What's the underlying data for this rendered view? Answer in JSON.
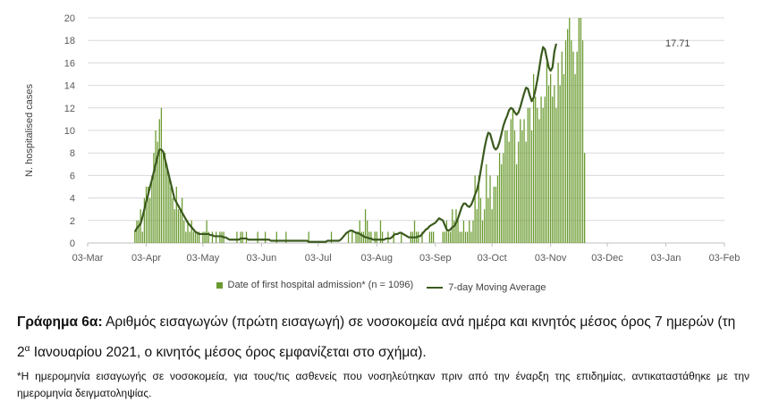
{
  "chart_data": {
    "type": "bar",
    "ylabel": "N. hospitalised cases",
    "ylim": [
      0,
      20
    ],
    "yticks": [
      "0",
      "2",
      "4",
      "6",
      "8",
      "10",
      "12",
      "14",
      "16",
      "18",
      "20"
    ],
    "xticks": [
      "03-Mar",
      "03-Apr",
      "03-May",
      "03-Jun",
      "03-Jul",
      "03-Aug",
      "03-Sep",
      "03-Oct",
      "03-Nov",
      "03-Dec",
      "03-Jan",
      "03-Feb"
    ],
    "xlim": [
      "2020-03-03",
      "2021-02-03"
    ],
    "grid": true,
    "legend_position": "bottom",
    "start_date": "2020-03-03",
    "series": [
      {
        "name": "Date of first hospital admission* (n = 1096)",
        "kind": "bar",
        "color": "#6a9a2f",
        "values": [
          0,
          0,
          0,
          0,
          0,
          0,
          0,
          0,
          0,
          0,
          0,
          0,
          0,
          0,
          0,
          0,
          0,
          0,
          0,
          0,
          0,
          0,
          0,
          0,
          0,
          1,
          2,
          2,
          3,
          1,
          4,
          5,
          5,
          4,
          6,
          8,
          10,
          9,
          11,
          12,
          8,
          8,
          7,
          6,
          5,
          4,
          3,
          5,
          3,
          3,
          4,
          2,
          1,
          2,
          1,
          2,
          1,
          1,
          1,
          1,
          0,
          1,
          1,
          2,
          1,
          0,
          1,
          0,
          1,
          0,
          1,
          1,
          1,
          0,
          0,
          0,
          0,
          0,
          0,
          1,
          0,
          1,
          1,
          0,
          1,
          0,
          0,
          0,
          0,
          0,
          1,
          0,
          0,
          0,
          1,
          0,
          0,
          0,
          0,
          0,
          1,
          0,
          0,
          0,
          0,
          1,
          0,
          0,
          0,
          0,
          0,
          0,
          0,
          0,
          0,
          0,
          0,
          1,
          0,
          0,
          0,
          0,
          0,
          0,
          0,
          0,
          0,
          0,
          0,
          1,
          0,
          0,
          0,
          0,
          0,
          0,
          0,
          0,
          1,
          0,
          1,
          0,
          1,
          1,
          2,
          1,
          1,
          3,
          2,
          1,
          1,
          0,
          1,
          1,
          0,
          2,
          1,
          0,
          0,
          1,
          0,
          0,
          1,
          0,
          0,
          0,
          1,
          0,
          0,
          0,
          0,
          1,
          1,
          2,
          1,
          1,
          0,
          1,
          0,
          0,
          0,
          1,
          1,
          1,
          0,
          0,
          0,
          0,
          1,
          1,
          2,
          1,
          1,
          3,
          2,
          3,
          2,
          1,
          1,
          2,
          1,
          1,
          2,
          1,
          2,
          6,
          3,
          6,
          4,
          2,
          3,
          7,
          4,
          6,
          3,
          5,
          5,
          6,
          8,
          7,
          8,
          10,
          10,
          9,
          11,
          12,
          10,
          7,
          9,
          11,
          10,
          11,
          9,
          12,
          12,
          10,
          15,
          13,
          12,
          11,
          13,
          12,
          13,
          16,
          14,
          15,
          13,
          14,
          12,
          16,
          14,
          17,
          15,
          18,
          19,
          20,
          18,
          17,
          15,
          17,
          20,
          20,
          18,
          8
        ]
      },
      {
        "name": "7-day Moving Average",
        "kind": "line",
        "color": "#3b5a1e",
        "values": [
          0,
          0,
          0,
          0,
          0,
          0,
          0,
          0,
          0,
          0,
          0,
          0,
          0,
          0,
          0,
          0,
          0,
          0,
          0,
          0,
          0,
          0,
          0,
          0,
          0,
          1.0,
          1.3,
          1.5,
          1.7,
          2.3,
          3.0,
          3.7,
          4.3,
          5.0,
          5.6,
          6.3,
          7.0,
          7.7,
          8.3,
          8.3,
          8.1,
          7.4,
          6.7,
          6.0,
          5.3,
          4.6,
          3.9,
          3.6,
          3.3,
          3.0,
          2.7,
          2.4,
          2.1,
          1.8,
          1.6,
          1.4,
          1.2,
          1.0,
          0.9,
          0.8,
          0.8,
          0.8,
          0.8,
          0.8,
          0.8,
          0.7,
          0.7,
          0.6,
          0.6,
          0.6,
          0.6,
          0.6,
          0.5,
          0.5,
          0.4,
          0.3,
          0.3,
          0.3,
          0.3,
          0.3,
          0.3,
          0.4,
          0.4,
          0.4,
          0.4,
          0.3,
          0.3,
          0.3,
          0.3,
          0.3,
          0.3,
          0.3,
          0.3,
          0.3,
          0.3,
          0.3,
          0.3,
          0.2,
          0.2,
          0.2,
          0.2,
          0.2,
          0.2,
          0.2,
          0.2,
          0.2,
          0.2,
          0.2,
          0.2,
          0.2,
          0.2,
          0.2,
          0.2,
          0.2,
          0.2,
          0.2,
          0.2,
          0.1,
          0.1,
          0.1,
          0.1,
          0.1,
          0.1,
          0.1,
          0.1,
          0.1,
          0.1,
          0.2,
          0.2,
          0.2,
          0.2,
          0.2,
          0.2,
          0.2,
          0.3,
          0.5,
          0.7,
          0.9,
          1.0,
          1.1,
          1.1,
          1.0,
          0.9,
          0.9,
          0.8,
          0.7,
          0.6,
          0.5,
          0.5,
          0.4,
          0.4,
          0.3,
          0.3,
          0.3,
          0.3,
          0.3,
          0.3,
          0.3,
          0.4,
          0.4,
          0.4,
          0.5,
          0.7,
          0.8,
          0.8,
          0.9,
          0.9,
          0.8,
          0.7,
          0.6,
          0.5,
          0.5,
          0.5,
          0.5,
          0.5,
          0.6,
          0.6,
          0.8,
          1.0,
          1.2,
          1.3,
          1.5,
          1.6,
          1.7,
          1.8,
          2.0,
          2.2,
          2.1,
          2.0,
          1.6,
          1.2,
          1.1,
          1.2,
          1.4,
          1.5,
          1.8,
          2.2,
          2.7,
          3.2,
          3.5,
          3.5,
          3.3,
          3.2,
          3.4,
          3.8,
          4.3,
          4.7,
          5.4,
          6.4,
          7.4,
          8.4,
          9.2,
          9.8,
          9.7,
          9.1,
          8.5,
          8.3,
          8.5,
          9.0,
          9.7,
          10.4,
          10.9,
          11.3,
          11.8,
          12.0,
          11.9,
          11.6,
          11.4,
          11.6,
          12.1,
          12.7,
          13.3,
          13.8,
          13.7,
          13.1,
          12.6,
          12.9,
          13.6,
          14.5,
          15.5,
          16.6,
          17.4,
          17.2,
          16.4,
          15.6,
          15.3,
          15.6,
          17.0,
          17.71
        ]
      }
    ],
    "last_value_label": "17.71"
  },
  "legend": {
    "bars_label": "Date of first hospital admission* (n = 1096)",
    "line_label": "7-day Moving Average"
  },
  "caption": {
    "lead": "Γράφημα 6α:",
    "text1": " Αριθμός εισαγωγών (πρώτη εισαγωγή) σε νοσοκομεία ανά ημέρα και κινητός μέσος όρος 7 ημερών (τη 2",
    "sup": "α",
    "text2": " Ιανουαρίου 2021, ο κινητός μέσος όρος εμφανίζεται στο σχήμα)."
  },
  "footnote": "*Η ημερομηνία εισαγωγής σε νοσοκομεία, για τους/τις ασθενείς που νοσηλεύτηκαν πριν από την έναρξη της επιδημίας, αντικαταστάθηκε με την ημερομηνία δειγματοληψίας."
}
